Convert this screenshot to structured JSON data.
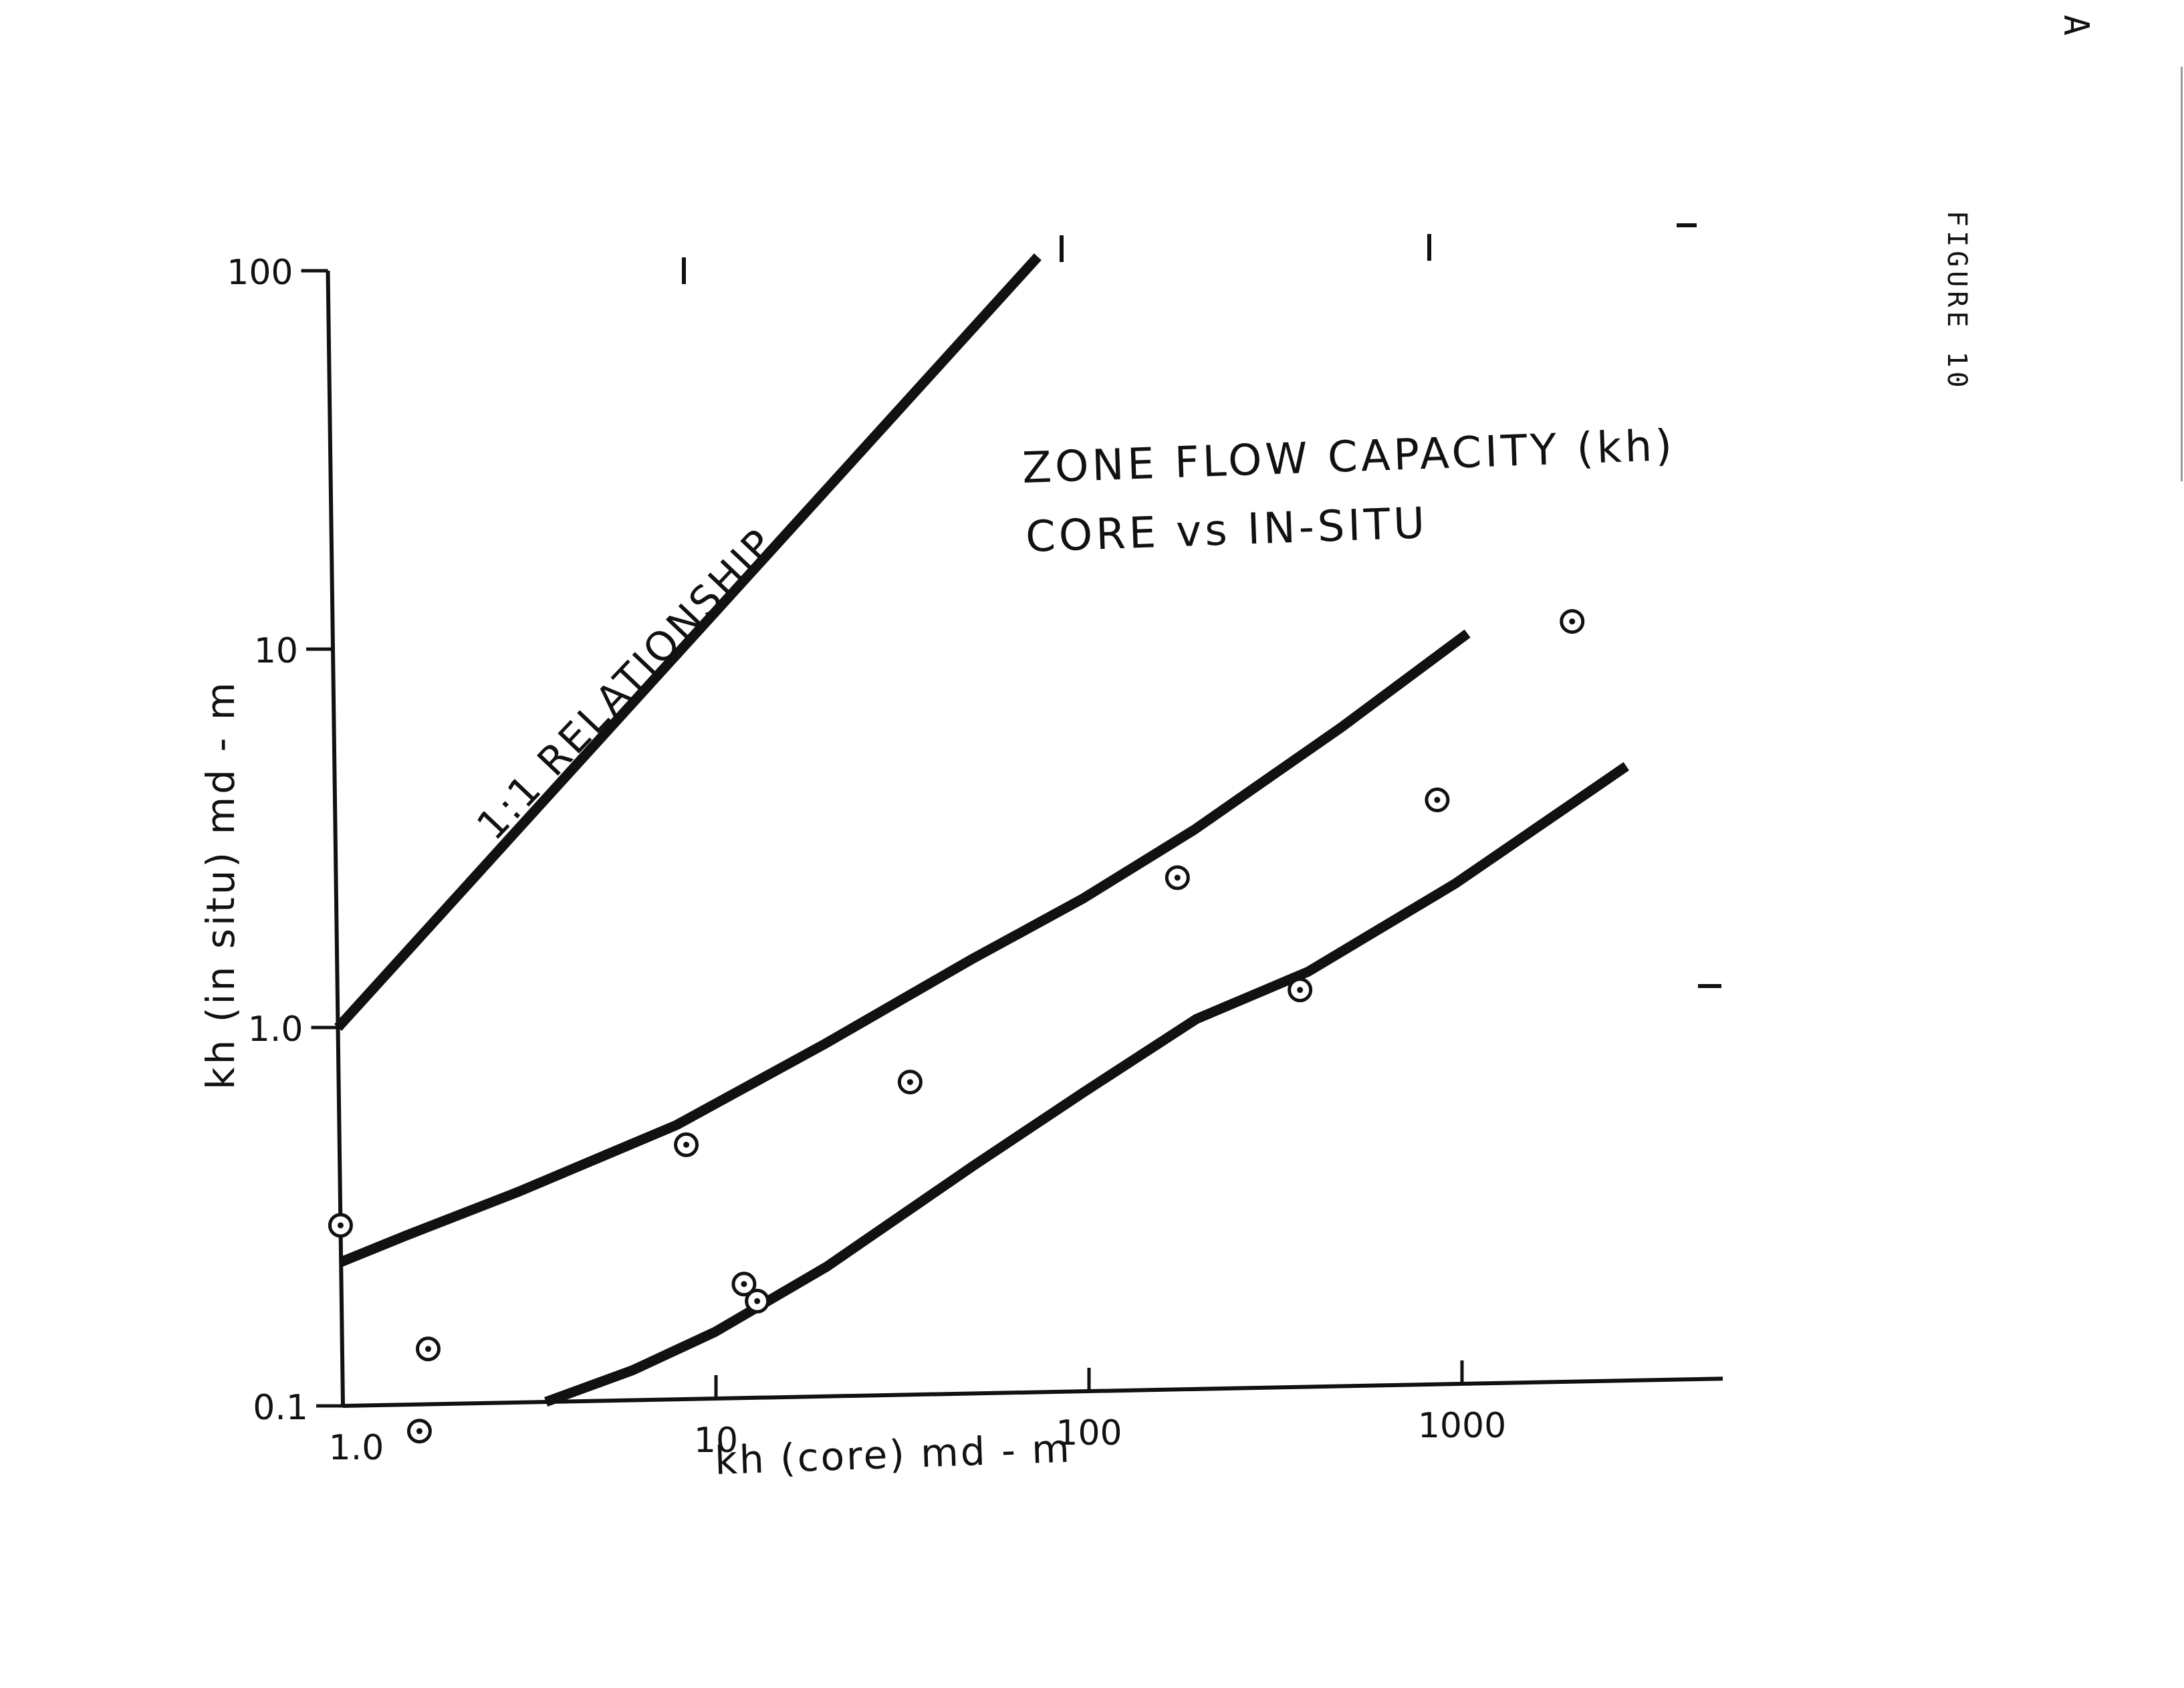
{
  "page": {
    "corner_letter": "A",
    "figure_label": "FIGURE 10"
  },
  "chart_data": {
    "type": "scatter",
    "title": "ZONE FLOW CAPACITY (kh)",
    "subtitle": "CORE vs IN-SITU",
    "xlabel": "kh (core) md - m",
    "ylabel": "kh (in situ) md - m",
    "xscale": "log",
    "yscale": "log",
    "xlim": [
      1.0,
      5000
    ],
    "ylim": [
      0.1,
      100
    ],
    "xticks": [
      1.0,
      10,
      100,
      1000
    ],
    "xtick_labels": [
      "1.0",
      "10",
      "100",
      "1000"
    ],
    "yticks": [
      0.1,
      1.0,
      10,
      100
    ],
    "ytick_labels": [
      "0.1",
      "1.0",
      "10",
      "100"
    ],
    "grid": false,
    "series": [
      {
        "name": "",
        "mode": "markers",
        "marker": "dotted-circle",
        "x": [
          1.0,
          1.7,
          1.6,
          8.5,
          12,
          13,
          34,
          180,
          380,
          900,
          2100
        ],
        "y": [
          0.3,
          0.14,
          0.085,
          0.47,
          0.2,
          0.18,
          0.67,
          2.25,
          1.12,
          3.5,
          10.2
        ]
      }
    ],
    "lines": [
      {
        "label": "1:1 RELATIONSHIP",
        "x": [
          1.0,
          80
        ],
        "y": [
          1.0,
          100
        ]
      },
      {
        "label": "",
        "x": [
          1.0,
          1.5,
          3,
          8,
          20,
          50,
          100,
          200,
          500,
          1100
        ],
        "y": [
          0.24,
          0.28,
          0.36,
          0.53,
          0.85,
          1.4,
          2.0,
          3.0,
          5.5,
          9.6
        ]
      },
      {
        "label": "",
        "x": [
          3.5,
          6,
          10,
          20,
          50,
          100,
          200,
          400,
          1000,
          2900
        ],
        "y": [
          0.1,
          0.12,
          0.15,
          0.22,
          0.4,
          0.62,
          0.95,
          1.25,
          2.1,
          4.2
        ]
      }
    ]
  }
}
